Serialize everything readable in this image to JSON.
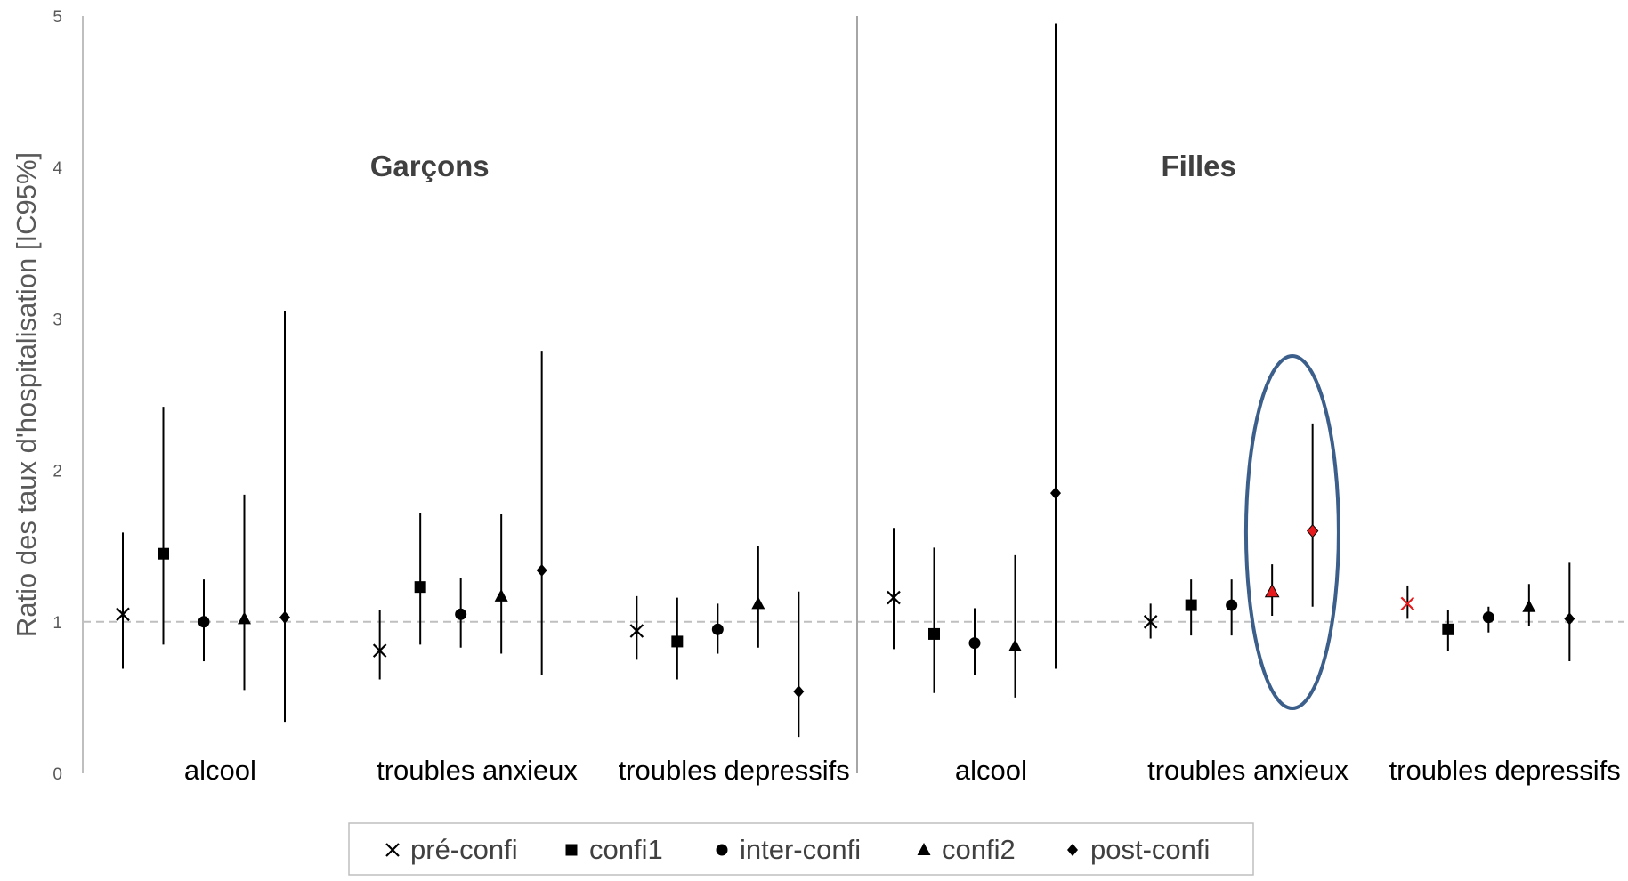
{
  "chart_data": {
    "type": "scatter",
    "ylabel": "Ratio des taux d'hospitalisation [IC95%]",
    "ylim": [
      0,
      5
    ],
    "yticks": [
      0,
      1,
      2,
      3,
      4,
      5
    ],
    "reference_line": 1,
    "grid": false,
    "legend_position": "bottom",
    "series_names": [
      "pré-confi",
      "confi1",
      "inter-confi",
      "confi2",
      "post-confi"
    ],
    "series_markers": [
      "x",
      "square",
      "circle",
      "triangle",
      "diamond"
    ],
    "highlight_color": "#e41a1c",
    "ellipse_color": "#3b5f8a",
    "panels": [
      {
        "title": "Garçons",
        "groups": [
          {
            "label": "alcool",
            "points": [
              {
                "series": "pré-confi",
                "y": 1.05,
                "low": 0.69,
                "high": 1.59
              },
              {
                "series": "confi1",
                "y": 1.45,
                "low": 0.85,
                "high": 2.42
              },
              {
                "series": "inter-confi",
                "y": 1.0,
                "low": 0.74,
                "high": 1.28
              },
              {
                "series": "confi2",
                "y": 1.02,
                "low": 0.55,
                "high": 1.84
              },
              {
                "series": "post-confi",
                "y": 1.03,
                "low": 0.34,
                "high": 3.05
              }
            ]
          },
          {
            "label": "troubles anxieux",
            "points": [
              {
                "series": "pré-confi",
                "y": 0.81,
                "low": 0.62,
                "high": 1.08
              },
              {
                "series": "confi1",
                "y": 1.23,
                "low": 0.85,
                "high": 1.72
              },
              {
                "series": "inter-confi",
                "y": 1.05,
                "low": 0.83,
                "high": 1.29
              },
              {
                "series": "confi2",
                "y": 1.17,
                "low": 0.79,
                "high": 1.71
              },
              {
                "series": "post-confi",
                "y": 1.34,
                "low": 0.65,
                "high": 2.79
              }
            ]
          },
          {
            "label": "troubles depressifs",
            "points": [
              {
                "series": "pré-confi",
                "y": 0.94,
                "low": 0.75,
                "high": 1.17
              },
              {
                "series": "confi1",
                "y": 0.87,
                "low": 0.62,
                "high": 1.16
              },
              {
                "series": "inter-confi",
                "y": 0.95,
                "low": 0.79,
                "high": 1.12
              },
              {
                "series": "confi2",
                "y": 1.12,
                "low": 0.83,
                "high": 1.5
              },
              {
                "series": "post-confi",
                "y": 0.54,
                "low": 0.24,
                "high": 1.2
              }
            ]
          }
        ]
      },
      {
        "title": "Filles",
        "groups": [
          {
            "label": "alcool",
            "points": [
              {
                "series": "pré-confi",
                "y": 1.16,
                "low": 0.82,
                "high": 1.62
              },
              {
                "series": "confi1",
                "y": 0.92,
                "low": 0.53,
                "high": 1.49
              },
              {
                "series": "inter-confi",
                "y": 0.86,
                "low": 0.65,
                "high": 1.09
              },
              {
                "series": "confi2",
                "y": 0.84,
                "low": 0.5,
                "high": 1.44
              },
              {
                "series": "post-confi",
                "y": 1.85,
                "low": 0.69,
                "high": 4.95
              }
            ]
          },
          {
            "label": "troubles anxieux",
            "points": [
              {
                "series": "pré-confi",
                "y": 1.0,
                "low": 0.89,
                "high": 1.12
              },
              {
                "series": "confi1",
                "y": 1.11,
                "low": 0.91,
                "high": 1.28
              },
              {
                "series": "inter-confi",
                "y": 1.11,
                "low": 0.91,
                "high": 1.28
              },
              {
                "series": "confi2",
                "y": 1.2,
                "low": 1.04,
                "high": 1.38,
                "highlight": true
              },
              {
                "series": "post-confi",
                "y": 1.6,
                "low": 1.1,
                "high": 2.31,
                "highlight": true
              }
            ],
            "circled": true
          },
          {
            "label": "troubles depressifs",
            "points": [
              {
                "series": "pré-confi",
                "y": 1.12,
                "low": 1.02,
                "high": 1.24,
                "highlight": true
              },
              {
                "series": "confi1",
                "y": 0.95,
                "low": 0.81,
                "high": 1.08
              },
              {
                "series": "inter-confi",
                "y": 1.03,
                "low": 0.93,
                "high": 1.1
              },
              {
                "series": "confi2",
                "y": 1.1,
                "low": 0.97,
                "high": 1.25
              },
              {
                "series": "post-confi",
                "y": 1.02,
                "low": 0.74,
                "high": 1.39
              }
            ]
          }
        ]
      }
    ]
  }
}
